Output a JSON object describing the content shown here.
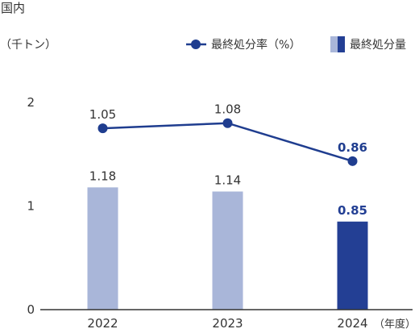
{
  "colors": {
    "bar": "#a9b6d9",
    "bar_highlight": "#233f94",
    "line": "#1f3d8f",
    "text": "#333333",
    "axis": "#333333"
  },
  "chart_data": {
    "type": "bar",
    "title": "国内",
    "ylabel": "（千トン）",
    "xlabel": "（年度）",
    "categories": [
      "2022",
      "2023",
      "2024"
    ],
    "ylim": [
      0,
      2
    ],
    "yticks": [
      0,
      1,
      2
    ],
    "y2lim": [
      0,
      1.2
    ],
    "grid": false,
    "legend_position": "top-right",
    "highlight_category": "2024",
    "series": [
      {
        "name": "最終処分量",
        "type": "bar",
        "values": [
          1.18,
          1.14,
          0.85
        ]
      },
      {
        "name": "最終処分率（%）",
        "type": "line",
        "axis": "secondary",
        "values": [
          1.05,
          1.08,
          0.86
        ]
      }
    ]
  }
}
